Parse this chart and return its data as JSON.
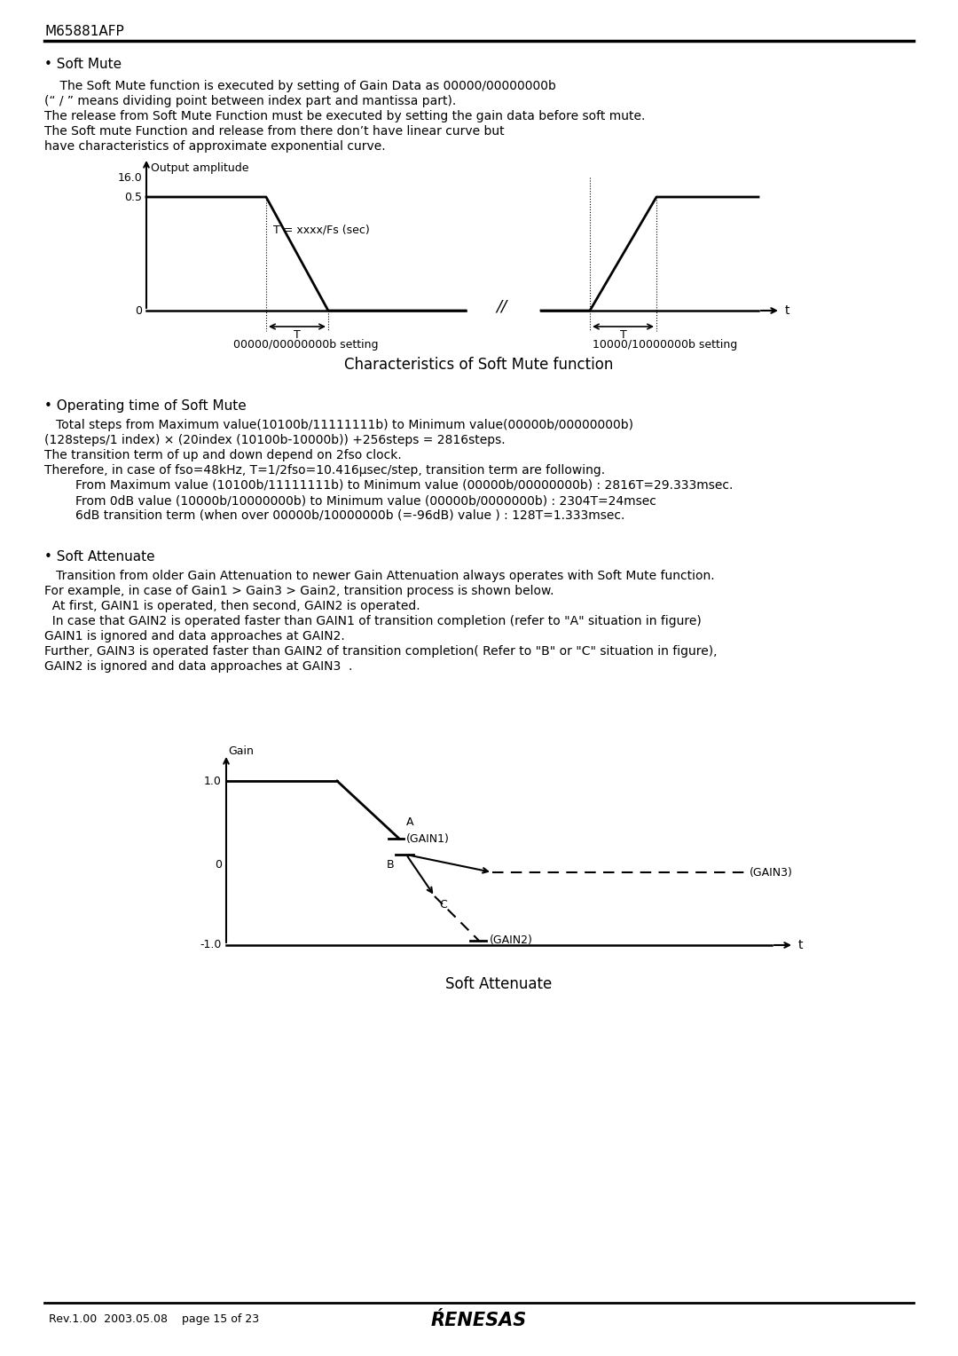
{
  "bg_color": "#ffffff",
  "title_text": "M65881AFP",
  "page_footer": "Rev.1.00  2003.05.08    page 15 of 23",
  "renesas_text": "ŔENESAS",
  "soft_mute_bullet": "• Soft Mute",
  "soft_mute_para1": "    The Soft Mute function is executed by setting of Gain Data as 00000/00000000b",
  "soft_mute_para2": "(“ / ” means dividing point between index part and mantissa part).",
  "soft_mute_para3": "The release from Soft Mute Function must be executed by setting the gain data before soft mute.",
  "soft_mute_para4": "The Soft mute Function and release from there don’t have linear curve but",
  "soft_mute_para5": "have characteristics of approximate exponential curve.",
  "chart1_ylabel": "Output amplitude",
  "chart1_y16": "16.0",
  "chart1_y05": "0.5",
  "chart1_y0": "0",
  "chart1_T_label": "T = xxxx/Fs (sec)",
  "chart1_T_axis": "T",
  "chart1_t_axis": "t",
  "chart1_slash": "//",
  "chart1_label_left": "00000/00000000b setting",
  "chart1_label_right": "10000/10000000b setting",
  "chart1_title": "Characteristics of Soft Mute function",
  "op_bullet": "• Operating time of Soft Mute",
  "op_para1": "   Total steps from Maximum value(10100b/11111111b) to Minimum value(00000b/00000000b)",
  "op_para2": "(128steps/1 index) × (20index (10100b-10000b)) +256steps = 2816steps.",
  "op_para3": "The transition term of up and down depend on 2fso clock.",
  "op_para4": "Therefore, in case of fso=48kHz, T=1/2fso=10.416μsec/step, transition term are following.",
  "op_para5": "        From Maximum value (10100b/11111111b) to Minimum value (00000b/00000000b) : 2816T=29.333msec.",
  "op_para6": "        From 0dB value (10000b/10000000b) to Minimum value (00000b/0000000b) : 2304T=24msec",
  "op_para7": "        6dB transition term (when over 00000b/10000000b (=-96dB) value ) : 128T=1.333msec.",
  "sa_bullet": "• Soft Attenuate",
  "sa_para1": "   Transition from older Gain Attenuation to newer Gain Attenuation always operates with Soft Mute function.",
  "sa_para2": "For example, in case of Gain1 > Gain3 > Gain2, transition process is shown below.",
  "sa_para3": "  At first, GAIN1 is operated, then second, GAIN2 is operated.",
  "sa_para4": "  In case that GAIN2 is operated faster than GAIN1 of transition completion (refer to \"A\" situation in figure)",
  "sa_para5": "GAIN1 is ignored and data approaches at GAIN2.",
  "sa_para6": "Further, GAIN3 is operated faster than GAIN2 of transition completion( Refer to \"B\" or \"C\" situation in figure),",
  "sa_para7": "GAIN2 is ignored and data approaches at GAIN3  .",
  "chart2_ylabel": "Gain",
  "chart2_y10": "1.0",
  "chart2_y0": "0",
  "chart2_ym10": "-1.0",
  "chart2_t_axis": "t",
  "chart2_title": "Soft Attenuate",
  "chart2_A": "A",
  "chart2_B": "B",
  "chart2_C": "C",
  "chart2_GAIN1": "(GAIN1)",
  "chart2_GAIN2": "(GAIN2)",
  "chart2_GAIN3": "(GAIN3)"
}
